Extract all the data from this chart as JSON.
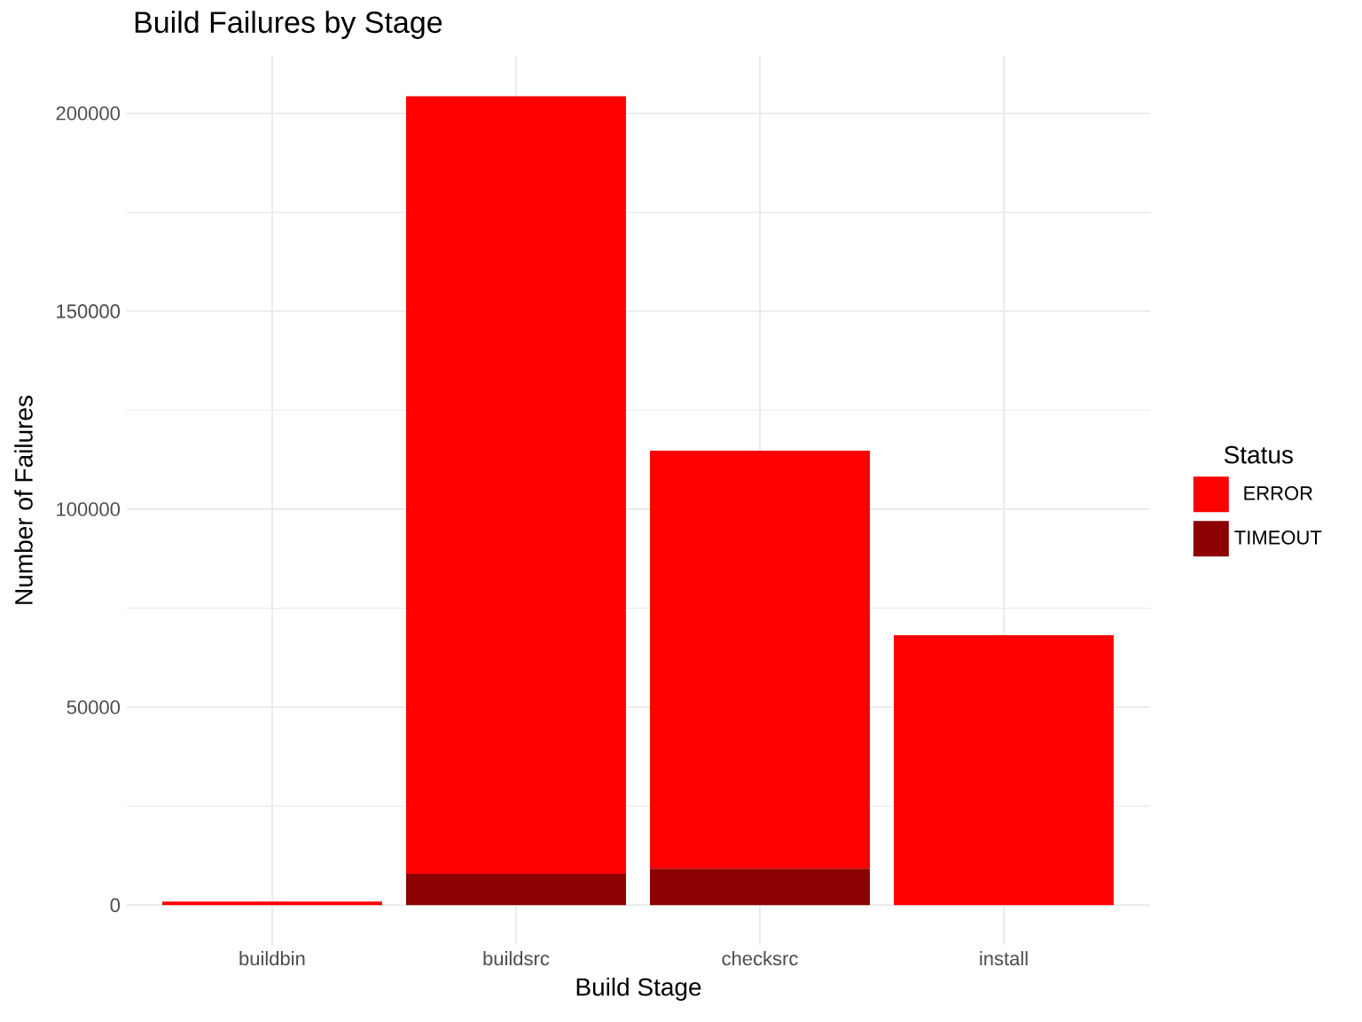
{
  "chart_data": {
    "type": "bar",
    "title": "Build Failures by Stage",
    "xlabel": "Build Stage",
    "ylabel": "Number of Failures",
    "legend_title": "Status",
    "categories": [
      "buildbin",
      "buildsrc",
      "checksrc",
      "install"
    ],
    "stacked": true,
    "series": [
      {
        "name": "TIMEOUT",
        "color": "#8b0000",
        "values": [
          0,
          7900,
          9200,
          0
        ]
      },
      {
        "name": "ERROR",
        "color": "#ff0000",
        "values": [
          900,
          196400,
          105600,
          68200
        ]
      }
    ],
    "ylim": [
      -10000,
      214500
    ],
    "yticks": [
      0,
      50000,
      100000,
      150000,
      200000
    ],
    "grid": true,
    "legend": "right"
  }
}
